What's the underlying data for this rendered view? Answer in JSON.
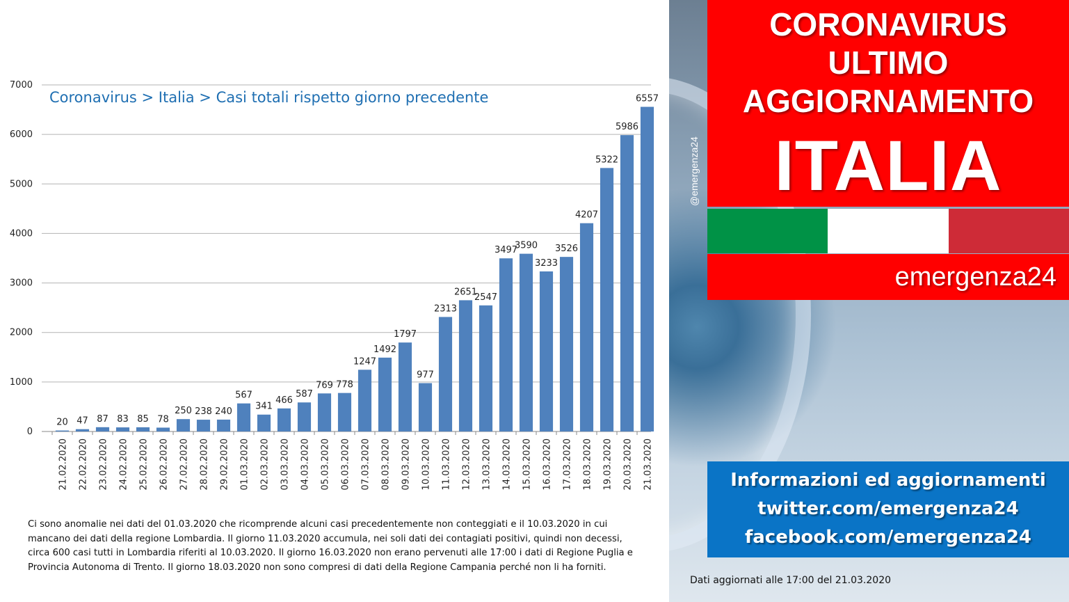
{
  "chart_data": {
    "type": "bar",
    "title": "Coronavirus > Italia > Casi totali rispetto giorno precedente",
    "categories": [
      "21.02.2020",
      "22.02.2020",
      "23.02.2020",
      "24.02.2020",
      "25.02.2020",
      "26.02.2020",
      "27.02.2020",
      "28.02.2020",
      "29.02.2020",
      "01.03.2020",
      "02.03.2020",
      "03.03.2020",
      "04.03.2020",
      "05.03.2020",
      "06.03.2020",
      "07.03.2020",
      "08.03.2020",
      "09.03.2020",
      "10.03.2020",
      "11.03.2020",
      "12.03.2020",
      "13.03.2020",
      "14.03.2020",
      "15.03.2020",
      "16.03.2020",
      "17.03.2020",
      "18.03.2020",
      "19.03.2020",
      "20.03.2020",
      "21.03.2020"
    ],
    "values": [
      20,
      47,
      87,
      83,
      85,
      78,
      250,
      238,
      240,
      567,
      341,
      466,
      587,
      769,
      778,
      1247,
      1492,
      1797,
      977,
      2313,
      2651,
      2547,
      3497,
      3590,
      3233,
      3526,
      4207,
      5322,
      5986,
      6557
    ],
    "yticks": [
      0,
      1000,
      2000,
      3000,
      4000,
      5000,
      6000,
      7000
    ],
    "ylim": [
      0,
      7000
    ],
    "grid": true,
    "bar_color": "#4f81bd",
    "xlabel": "",
    "ylabel": ""
  },
  "note": "Ci sono anomalie nei dati del 01.03.2020 che ricomprende alcuni casi precedentemente  non conteggiati e il 10.03.2020 in cui mancano dei dati della regione Lombardia. Il giorno 11.03.2020  accumula, nei soli dati dei contagiati positivi, quindi non decessi, circa 600 casi tutti in Lombardia riferiti al 10.03.2020. Il giorno 16.03.2020 non erano pervenuti alle 17:00 i dati di Regione Puglia e Provincia Autonoma di Trento. Il giorno 18.03.2020 non sono compresi di dati della Regione Campania perché non li ha forniti.",
  "handle": "@emergenza24",
  "headline": {
    "line1": "CORONAVIRUS",
    "line2": "ULTIMO",
    "line3": "AGGIORNAMENTO",
    "line4": "ITALIA"
  },
  "flag_colors": [
    "#009246",
    "#ffffff",
    "#ce2b37"
  ],
  "brand": "emergenza24",
  "info": {
    "line1": "Informazioni ed aggiornamenti",
    "line2": "twitter.com/emergenza24",
    "line3": "facebook.com/emergenza24"
  },
  "footer": "Dati aggiornati alle 17:00 del 21.03.2020",
  "colors": {
    "red": "#ff0000",
    "blue_box": "#0a74c6",
    "title_blue": "#1f6fb2"
  }
}
